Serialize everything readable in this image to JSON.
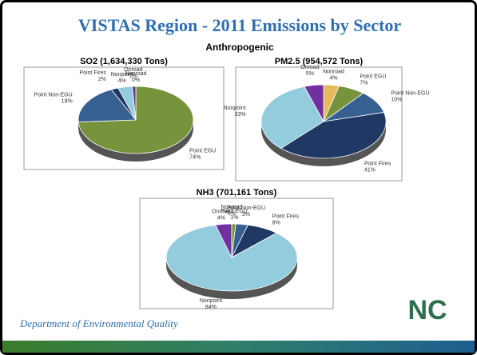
{
  "slide": {
    "title": "VISTAS Region - 2011 Emissions by Sector",
    "subtitle": "Anthropogenic",
    "footer": "Department of Environmental Quality",
    "logo": "NC"
  },
  "chart_data": [
    {
      "type": "pie",
      "title": "SO2 (1,634,330 Tons)",
      "categories": [
        "Nonroad",
        "Point EGU",
        "Point Non-EGU",
        "Point Fires",
        "Nonpoint",
        "Onroad"
      ],
      "values": [
        0,
        74,
        19,
        2,
        4,
        1
      ],
      "value_labels": [
        "0%",
        "74%",
        "19%",
        "2%",
        "4%",
        "1%"
      ],
      "colors": [
        "#e6b95c",
        "#77933c",
        "#376092",
        "#1f3864",
        "#93cddd",
        "#7030a0"
      ]
    },
    {
      "type": "pie",
      "title": "PM2.5 (954,572 Tons)",
      "categories": [
        "Nonroad",
        "Point EGU",
        "Point Non-EGU",
        "Point Fires",
        "Nonpoint",
        "Onroad"
      ],
      "values": [
        4,
        7,
        10,
        41,
        33,
        5
      ],
      "value_labels": [
        "4%",
        "7%",
        "10%",
        "41%",
        "33%",
        "5%"
      ],
      "colors": [
        "#e6b95c",
        "#77933c",
        "#376092",
        "#1f3864",
        "#93cddd",
        "#7030a0"
      ]
    },
    {
      "type": "pie",
      "title": "NH3 (701,161 Tons)",
      "categories": [
        "Point EGU",
        "Point Non-EGU",
        "Point Fires",
        "Nonpoint",
        "Onroad",
        "Nonroad"
      ],
      "values": [
        1,
        3,
        8,
        84,
        4,
        0
      ],
      "value_labels": [
        "1%",
        "3%",
        "8%",
        "84%",
        "4%",
        "0%"
      ],
      "colors": [
        "#77933c",
        "#376092",
        "#1f3864",
        "#93cddd",
        "#7030a0",
        "#e6b95c"
      ]
    }
  ]
}
